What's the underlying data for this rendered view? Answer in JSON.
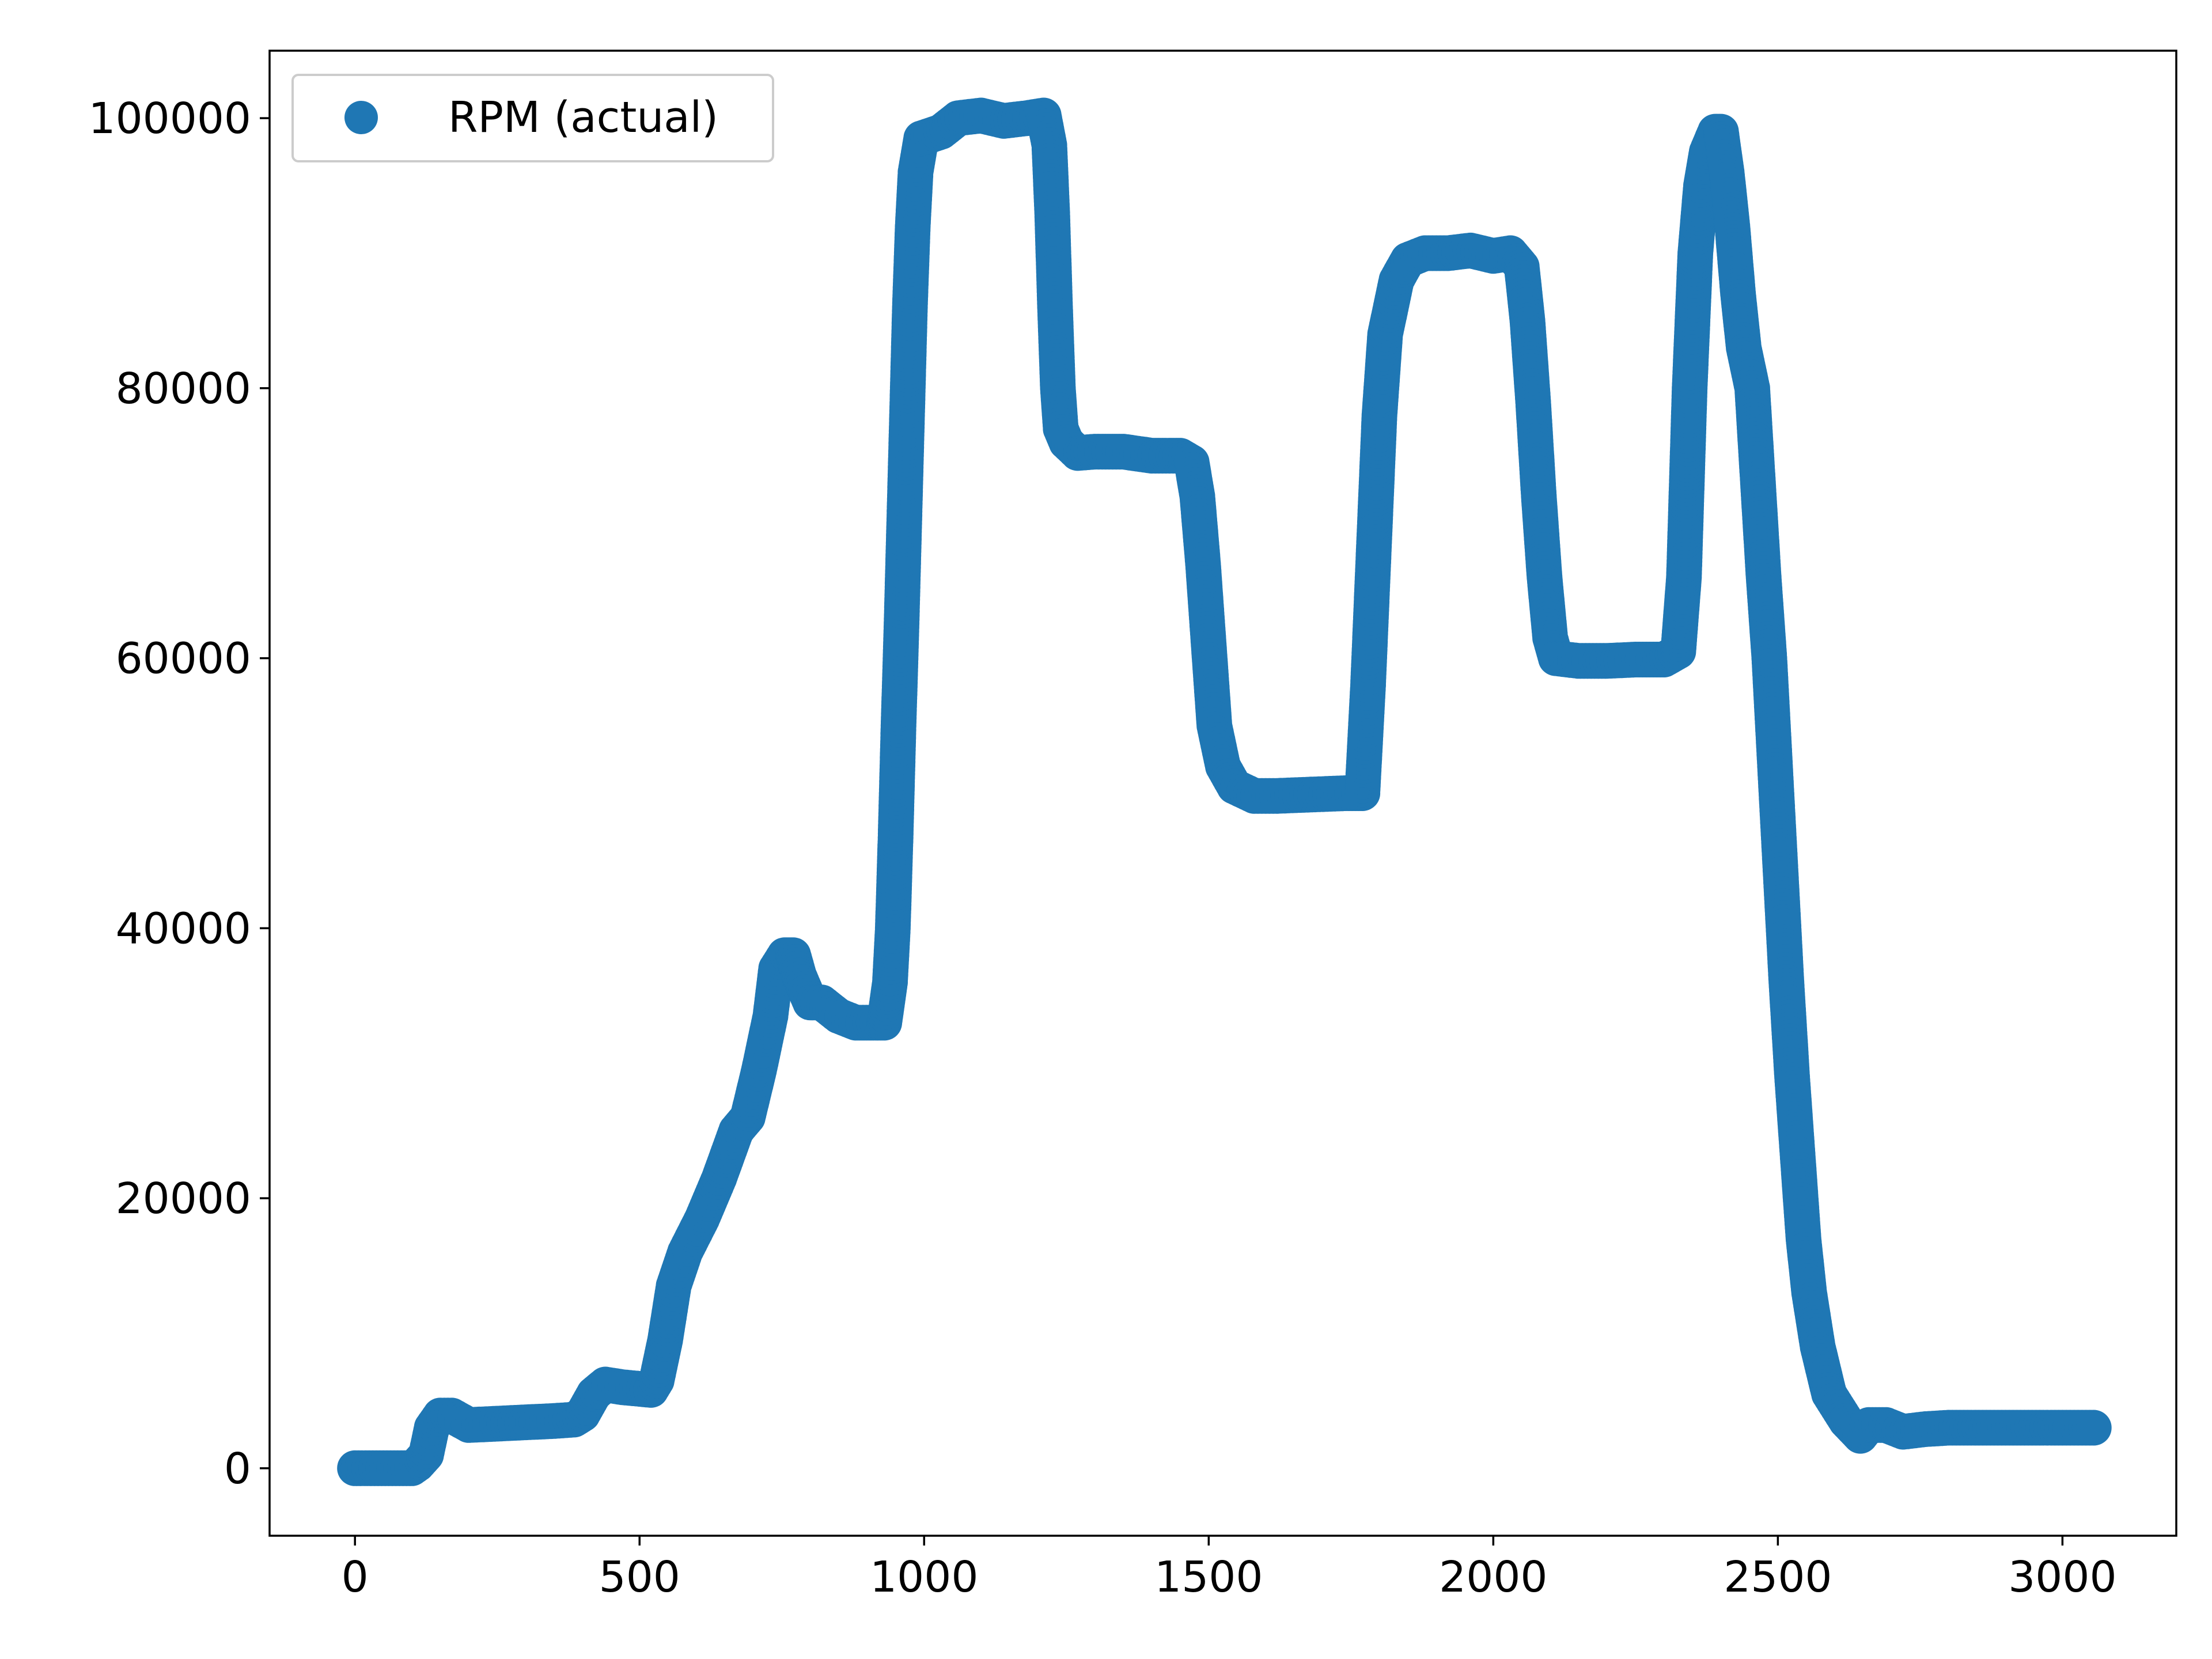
{
  "chart_data": {
    "type": "scatter",
    "title": "",
    "xlabel": "",
    "ylabel": "",
    "xlim": [
      -150,
      3200
    ],
    "ylim": [
      -5000,
      105000
    ],
    "xticks": [
      0,
      500,
      1000,
      1500,
      2000,
      2500,
      3000
    ],
    "yticks": [
      0,
      20000,
      40000,
      60000,
      80000,
      100000
    ],
    "xtick_labels": [
      "0",
      "500",
      "1000",
      "1500",
      "2000",
      "2500",
      "3000"
    ],
    "ytick_labels": [
      "0",
      "20000",
      "40000",
      "60000",
      "80000",
      "100000"
    ],
    "grid": false,
    "legend": {
      "position": "top-left"
    },
    "series": [
      {
        "name": "RPM (actual)",
        "color": "#1f77b4",
        "marker": "circle",
        "points": [
          [
            0,
            0
          ],
          [
            50,
            0
          ],
          [
            100,
            0
          ],
          [
            110,
            300
          ],
          [
            125,
            1000
          ],
          [
            135,
            3000
          ],
          [
            150,
            3900
          ],
          [
            170,
            3900
          ],
          [
            200,
            3200
          ],
          [
            250,
            3300
          ],
          [
            300,
            3400
          ],
          [
            350,
            3500
          ],
          [
            385,
            3600
          ],
          [
            400,
            4000
          ],
          [
            420,
            5500
          ],
          [
            440,
            6200
          ],
          [
            470,
            6000
          ],
          [
            520,
            5800
          ],
          [
            530,
            6500
          ],
          [
            545,
            9500
          ],
          [
            560,
            13500
          ],
          [
            580,
            16000
          ],
          [
            610,
            18500
          ],
          [
            640,
            21500
          ],
          [
            670,
            25000
          ],
          [
            690,
            26000
          ],
          [
            710,
            29500
          ],
          [
            730,
            33500
          ],
          [
            740,
            37000
          ],
          [
            755,
            38000
          ],
          [
            770,
            38000
          ],
          [
            780,
            36500
          ],
          [
            800,
            34500
          ],
          [
            820,
            34500
          ],
          [
            850,
            33500
          ],
          [
            880,
            33000
          ],
          [
            930,
            33000
          ],
          [
            940,
            36000
          ],
          [
            945,
            40000
          ],
          [
            950,
            47000
          ],
          [
            955,
            55000
          ],
          [
            960,
            62000
          ],
          [
            965,
            70000
          ],
          [
            970,
            78000
          ],
          [
            975,
            86000
          ],
          [
            980,
            92000
          ],
          [
            985,
            96000
          ],
          [
            995,
            98500
          ],
          [
            1030,
            99000
          ],
          [
            1060,
            100000
          ],
          [
            1100,
            100200
          ],
          [
            1140,
            99800
          ],
          [
            1180,
            100000
          ],
          [
            1210,
            100200
          ],
          [
            1220,
            98000
          ],
          [
            1225,
            93000
          ],
          [
            1230,
            86000
          ],
          [
            1235,
            80000
          ],
          [
            1240,
            77000
          ],
          [
            1250,
            76000
          ],
          [
            1270,
            75200
          ],
          [
            1300,
            75300
          ],
          [
            1350,
            75300
          ],
          [
            1400,
            75000
          ],
          [
            1450,
            75000
          ],
          [
            1470,
            74500
          ],
          [
            1480,
            72000
          ],
          [
            1490,
            67000
          ],
          [
            1500,
            61000
          ],
          [
            1510,
            55000
          ],
          [
            1525,
            52000
          ],
          [
            1545,
            50500
          ],
          [
            1580,
            49800
          ],
          [
            1620,
            49800
          ],
          [
            1680,
            49900
          ],
          [
            1740,
            50000
          ],
          [
            1770,
            50000
          ],
          [
            1775,
            54000
          ],
          [
            1780,
            58000
          ],
          [
            1785,
            63000
          ],
          [
            1790,
            68000
          ],
          [
            1795,
            73000
          ],
          [
            1800,
            78000
          ],
          [
            1810,
            84000
          ],
          [
            1830,
            88000
          ],
          [
            1850,
            89500
          ],
          [
            1880,
            90000
          ],
          [
            1920,
            90000
          ],
          [
            1960,
            90200
          ],
          [
            2000,
            89800
          ],
          [
            2030,
            90000
          ],
          [
            2050,
            89000
          ],
          [
            2060,
            85000
          ],
          [
            2070,
            79000
          ],
          [
            2080,
            72000
          ],
          [
            2090,
            66000
          ],
          [
            2100,
            61500
          ],
          [
            2110,
            60000
          ],
          [
            2150,
            59800
          ],
          [
            2200,
            59800
          ],
          [
            2250,
            59900
          ],
          [
            2300,
            59900
          ],
          [
            2325,
            60500
          ],
          [
            2335,
            66000
          ],
          [
            2345,
            80000
          ],
          [
            2355,
            90000
          ],
          [
            2365,
            95000
          ],
          [
            2375,
            97500
          ],
          [
            2390,
            99000
          ],
          [
            2400,
            99000
          ],
          [
            2410,
            96000
          ],
          [
            2420,
            92000
          ],
          [
            2430,
            87000
          ],
          [
            2440,
            83000
          ],
          [
            2455,
            80000
          ],
          [
            2465,
            73000
          ],
          [
            2475,
            66000
          ],
          [
            2485,
            60000
          ],
          [
            2495,
            52000
          ],
          [
            2505,
            44000
          ],
          [
            2515,
            36000
          ],
          [
            2525,
            29000
          ],
          [
            2535,
            23000
          ],
          [
            2545,
            17000
          ],
          [
            2555,
            13000
          ],
          [
            2570,
            9000
          ],
          [
            2590,
            5500
          ],
          [
            2620,
            3500
          ],
          [
            2645,
            2400
          ],
          [
            2660,
            3200
          ],
          [
            2690,
            3200
          ],
          [
            2720,
            2700
          ],
          [
            2760,
            2900
          ],
          [
            2800,
            3000
          ],
          [
            2900,
            3000
          ],
          [
            3000,
            3000
          ],
          [
            3055,
            3000
          ]
        ]
      }
    ]
  }
}
